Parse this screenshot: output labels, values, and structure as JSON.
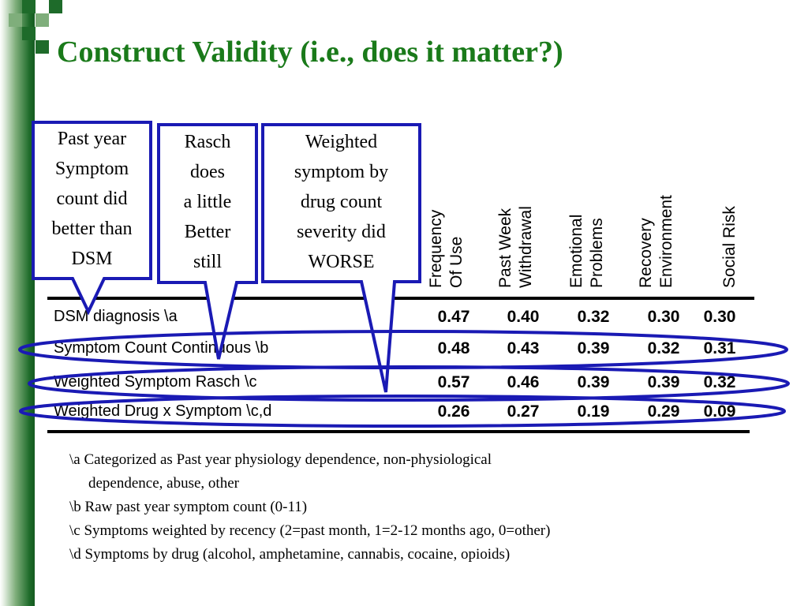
{
  "title": "Construct Validity (i.e., does it matter?)",
  "column_headers": [
    [
      "Frequency",
      "Of Use"
    ],
    [
      "Past Week",
      "Withdrawal"
    ],
    [
      "Emotional",
      "Problems"
    ],
    [
      "Recovery",
      "Environment"
    ],
    [
      "Social Risk"
    ]
  ],
  "rows": [
    {
      "label": "DSM diagnosis \\a",
      "values": [
        "0.47",
        "0.40",
        "0.32",
        "0.30",
        "0.30"
      ]
    },
    {
      "label": "Symptom Count Continuous \\b",
      "values": [
        "0.48",
        "0.43",
        "0.39",
        "0.32",
        "0.31"
      ]
    },
    {
      "label": "Weighted Symptom Rasch \\c",
      "values": [
        "0.57",
        "0.46",
        "0.39",
        "0.39",
        "0.32"
      ]
    },
    {
      "label": "Weighted Drug x Symptom \\c,d",
      "values": [
        "0.26",
        "0.27",
        "0.19",
        "0.29",
        "0.09"
      ]
    }
  ],
  "callouts": [
    {
      "lines": [
        "Past year",
        "Symptom",
        "count did",
        "better than",
        "DSM"
      ]
    },
    {
      "lines": [
        "Rasch",
        "does",
        "a little",
        "Better",
        "still"
      ]
    },
    {
      "lines": [
        "Weighted",
        "symptom by",
        "drug count",
        "severity did",
        "WORSE"
      ]
    }
  ],
  "footnotes": [
    "\\a Categorized as Past year physiology dependence, non-physiological",
    "dependence, abuse, other",
    "\\b Raw past year symptom count (0-11)",
    "\\c Symptoms weighted by recency (2=past month, 1=2-12 months ago, 0=other)",
    "\\d Symptoms by drug (alcohol, amphetamine, cannabis, cocaine, opioids)"
  ],
  "colors": {
    "title": "#1a7a1a",
    "callout_border": "#1a1ab4",
    "highlight_ellipse": "#1a1ab4",
    "sidebar": "#1e6b2a"
  }
}
